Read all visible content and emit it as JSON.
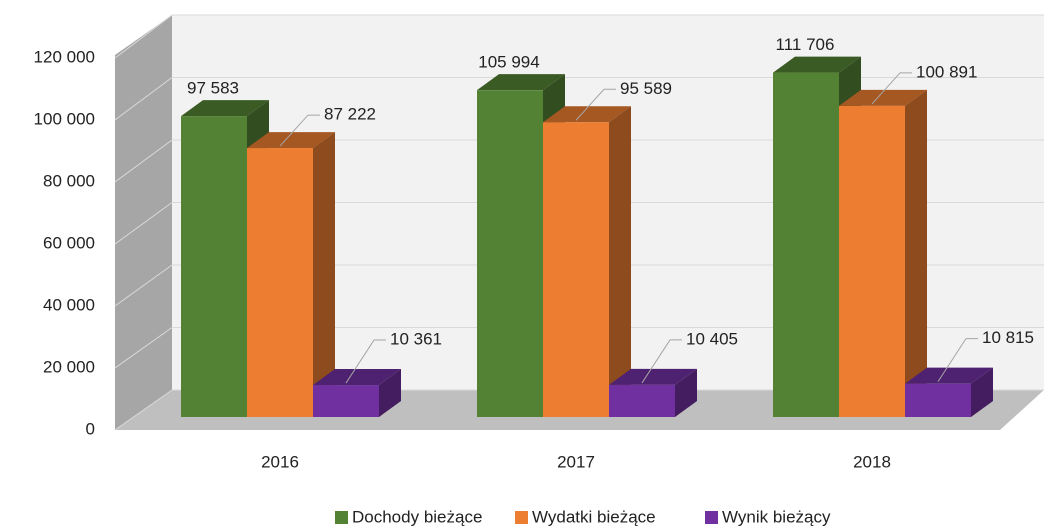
{
  "chart_data": {
    "type": "bar3d",
    "categories": [
      "2016",
      "2017",
      "2018"
    ],
    "series": [
      {
        "name": "Dochody bieżące",
        "color": "#548235",
        "values": [
          97583,
          105994,
          111706
        ],
        "value_labels": [
          "97 583",
          "105 994",
          "111 706"
        ]
      },
      {
        "name": "Wydatki bieżące",
        "color": "#ed7d31",
        "values": [
          87222,
          95589,
          100891
        ],
        "value_labels": [
          "87 222",
          "95 589",
          "100 891"
        ]
      },
      {
        "name": "Wynik bieżący",
        "color": "#7030a0",
        "values": [
          10361,
          10405,
          10815
        ],
        "value_labels": [
          "10 361",
          "10 405",
          "10 815"
        ]
      }
    ],
    "ylim": [
      0,
      120000
    ],
    "yticks": [
      {
        "value": 0,
        "label": "0"
      },
      {
        "value": 20000,
        "label": "20 000"
      },
      {
        "value": 40000,
        "label": "40 000"
      },
      {
        "value": 60000,
        "label": "60 000"
      },
      {
        "value": 80000,
        "label": "80 000"
      },
      {
        "value": 100000,
        "label": "100 000"
      },
      {
        "value": 120000,
        "label": "120 000"
      }
    ],
    "grid": true,
    "legend": "bottom"
  }
}
